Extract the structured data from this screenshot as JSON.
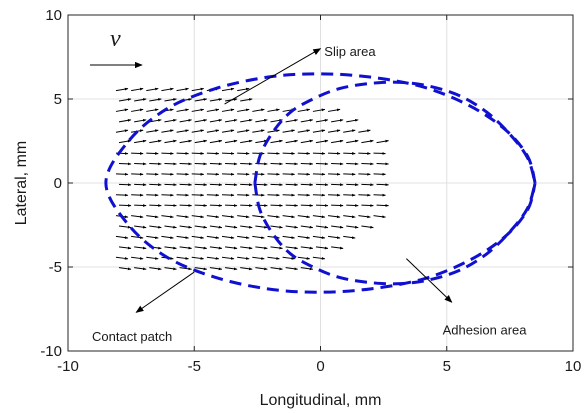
{
  "chart_data": {
    "type": "line",
    "title": "",
    "xlabel": "Longitudinal, mm",
    "ylabel": "Lateral, mm",
    "xlim": [
      -10,
      10
    ],
    "ylim": [
      -10,
      10
    ],
    "xticks": [
      -10,
      -5,
      0,
      5,
      10
    ],
    "yticks": [
      -10,
      -5,
      0,
      5,
      10
    ],
    "xtick_labels": [
      "-10",
      "-5",
      "0",
      "5",
      "10"
    ],
    "ytick_labels": [
      "-10",
      "-5",
      "0",
      "5",
      "10"
    ],
    "grid": true,
    "colors": {
      "boundary": "#1010d0",
      "arrows": "#000000",
      "grid": "#e0e0e0"
    },
    "series": [
      {
        "style": "dashed",
        "x": [
          8.5,
          8.2,
          7.3,
          5.9,
          4.1,
          2.0,
          -0.1,
          -2.1,
          -4.2,
          -6.1,
          -7.6,
          -8.5,
          -7.6,
          -6.1,
          -4.2,
          -2.1,
          -0.1,
          2.0,
          4.1,
          5.9,
          7.3,
          8.2,
          8.5
        ],
        "y": [
          0.0,
          1.6,
          3.2,
          4.6,
          5.7,
          6.3,
          6.5,
          6.3,
          5.6,
          4.4,
          2.5,
          0.0,
          -2.5,
          -4.4,
          -5.6,
          -6.3,
          -6.5,
          -6.3,
          -5.7,
          -4.6,
          -3.2,
          -1.6,
          0.0
        ]
      },
      {
        "style": "dashed",
        "x": [
          -2.6,
          -2.4,
          -1.9,
          -1.2,
          -0.3,
          0.7,
          1.8,
          3.0,
          4.2,
          5.5,
          6.6,
          7.5,
          8.2,
          8.5
        ],
        "y": [
          0.0,
          1.6,
          3.0,
          4.2,
          5.0,
          5.6,
          5.9,
          6.0,
          5.8,
          5.2,
          4.2,
          2.9,
          1.5,
          0.0
        ]
      },
      {
        "style": "dashed",
        "x": [
          -2.6,
          -2.4,
          -1.9,
          -1.2,
          -0.3,
          0.7,
          1.8,
          3.0,
          4.2,
          5.5,
          6.6,
          7.5,
          8.2,
          8.5
        ],
        "y": [
          0.0,
          -1.6,
          -3.0,
          -4.2,
          -5.0,
          -5.6,
          -5.9,
          -6.0,
          -5.8,
          -5.2,
          -4.2,
          -2.9,
          -1.5,
          0.0
        ]
      }
    ],
    "vector_field": {
      "x_min": -8.1,
      "x_step": 0.6,
      "y_max": 5.5,
      "y_step": -0.62,
      "row_counts": [
        9,
        9,
        15,
        16,
        17,
        18,
        18,
        18,
        18,
        18,
        18,
        18,
        18,
        17,
        16,
        15,
        14,
        13
      ],
      "directions": [
        0.17,
        -0.04,
        -0.13
      ]
    },
    "annotations": [
      {
        "text": "Slip area",
        "text_x": 0.0,
        "text_y": 8.0,
        "arrow_from": [
          -3.8,
          4.7
        ],
        "arrow_to": [
          0.0,
          8.0
        ]
      },
      {
        "text": "Contact patch",
        "text_x": -10.2,
        "text_y": -8.7,
        "arrow_from": [
          -5.0,
          -5.3
        ],
        "arrow_to": [
          -7.3,
          -7.7
        ]
      },
      {
        "text": "Adhesion area",
        "text_x": 4.8,
        "text_y": -8.3,
        "arrow_from": [
          3.4,
          -4.5
        ],
        "arrow_to": [
          5.2,
          -7.1
        ]
      },
      {
        "text": "v",
        "text_x": -12.7,
        "text_y": 8.3,
        "arrow_from": [
          -12.8,
          7.0
        ],
        "arrow_to": [
          -10.7,
          7.0
        ]
      }
    ]
  }
}
